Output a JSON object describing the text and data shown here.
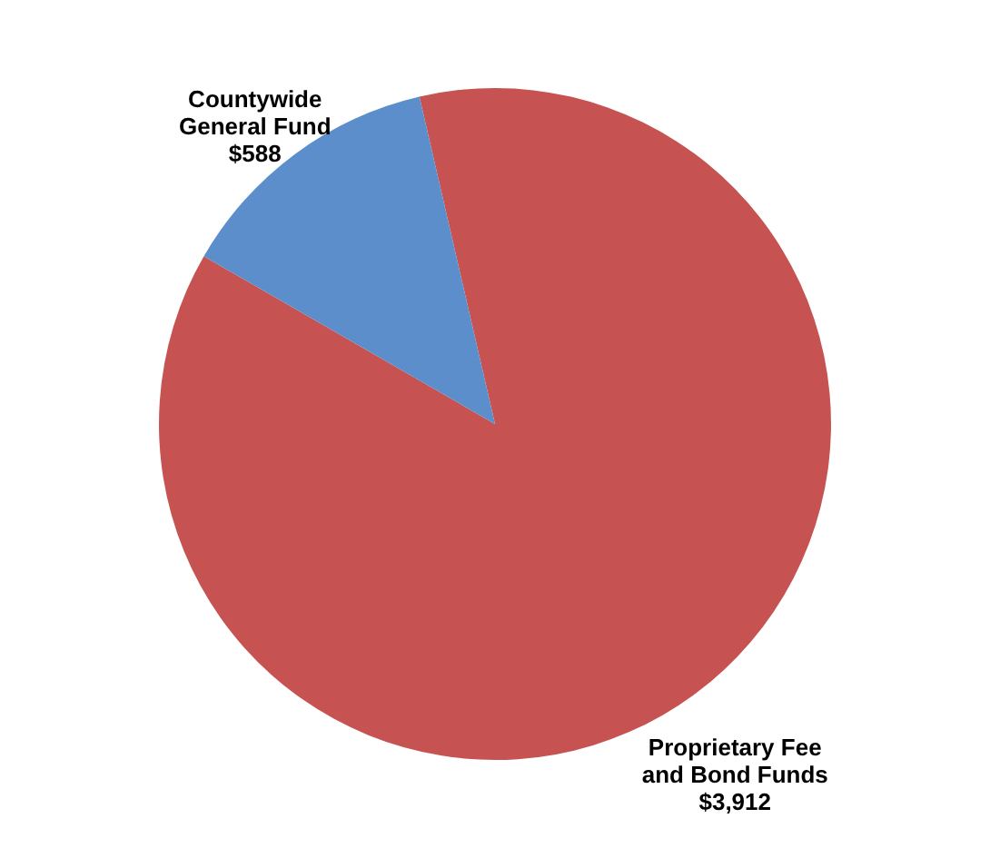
{
  "chart_data": {
    "type": "pie",
    "categories": [
      "Proprietary Fee and Bond Funds",
      "Countywide General Fund"
    ],
    "values": [
      3912,
      588
    ],
    "value_labels": [
      "$3,912",
      "$588"
    ],
    "colors": [
      "#c65352",
      "#5b8ecb"
    ]
  }
}
